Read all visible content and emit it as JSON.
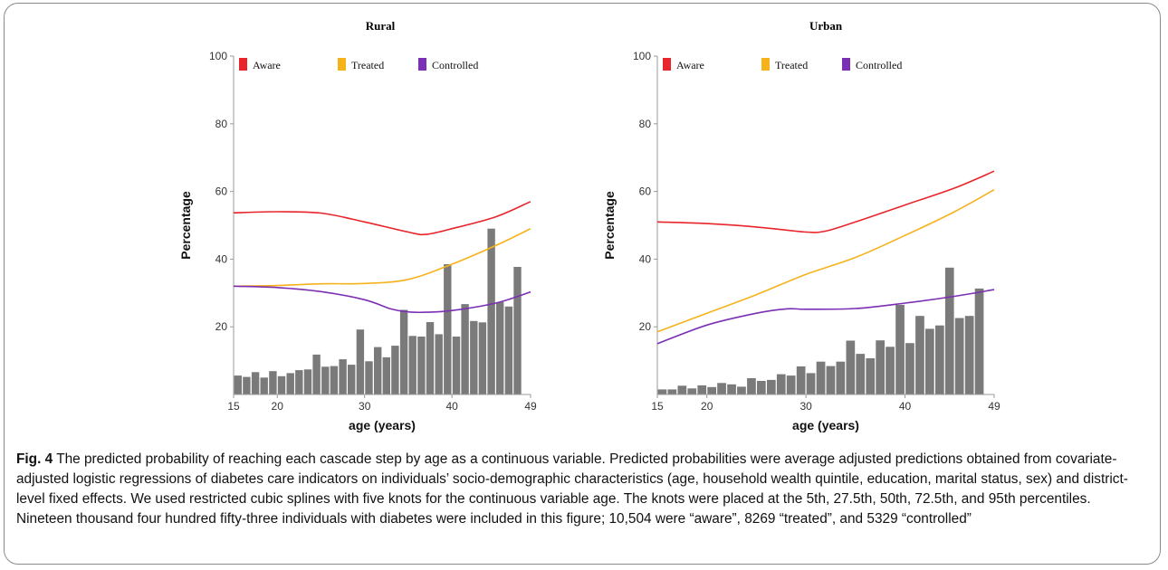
{
  "caption": {
    "label": "Fig. 4",
    "text": "The predicted probability of reaching each cascade step by age as a continuous variable. Predicted probabilities were average adjusted predictions obtained from covariate-adjusted logistic regressions of diabetes care indicators on individuals’ socio-demographic characteristics (age, household wealth quintile, education, marital status, sex) and district-level fixed effects. We used restricted cubic splines with five knots for the continuous variable age. The knots were placed at the 5th, 27.5th, 50th, 72.5th, and 95th percentiles. Nineteen thousand four hundred fifty-three individuals with diabetes were included in this figure; 10,504 were “aware”, 8269 “treated”, and 5329 “controlled”"
  },
  "colors": {
    "aware": "#e8252b",
    "treated": "#f5b21b",
    "controlled": "#7b2fb5",
    "bars": "#7a7a7a"
  },
  "chart_data": [
    {
      "type": "line",
      "title": "Rural",
      "xlabel": "age (years)",
      "ylabel": "Percentage",
      "xlim": [
        15,
        49
      ],
      "ylim": [
        0,
        100
      ],
      "xticks": [
        15,
        20,
        30,
        40,
        49
      ],
      "yticks": [
        20,
        40,
        60,
        80,
        100
      ],
      "legend": "top-left",
      "series": [
        {
          "name": "Aware",
          "x": [
            15,
            20,
            25,
            30,
            35,
            37,
            40,
            45,
            49
          ],
          "values": [
            53.7,
            54,
            53.6,
            51,
            48,
            47.3,
            49,
            52.5,
            57
          ]
        },
        {
          "name": "Treated",
          "x": [
            15,
            20,
            25,
            30,
            35,
            40,
            45,
            49
          ],
          "values": [
            32,
            32.2,
            32.7,
            32.8,
            34,
            38.5,
            44,
            49
          ]
        },
        {
          "name": "Controlled",
          "x": [
            15,
            20,
            25,
            30,
            33,
            35,
            37,
            40,
            45,
            49
          ],
          "values": [
            32,
            31.6,
            30.4,
            28,
            25.3,
            24.4,
            24.3,
            24.8,
            27,
            30.3
          ]
        }
      ],
      "histogram": {
        "x": [
          15,
          16,
          17,
          18,
          19,
          20,
          21,
          22,
          23,
          24,
          25,
          26,
          27,
          28,
          29,
          30,
          31,
          32,
          33,
          34,
          35,
          36,
          37,
          38,
          39,
          40,
          41,
          42,
          43,
          44,
          45,
          46,
          47,
          48
        ],
        "values": [
          5.6,
          5.2,
          6.6,
          5,
          6.9,
          5.4,
          6.3,
          7.2,
          7.4,
          11.8,
          8.2,
          8.4,
          10.4,
          8.8,
          19.2,
          9.8,
          14,
          11,
          14.4,
          25,
          17.3,
          17.1,
          21.4,
          17.8,
          38.5,
          17.1,
          26.7,
          21.7,
          21.3,
          49,
          27.3,
          26,
          37.7,
          0
        ]
      }
    },
    {
      "type": "line",
      "title": "Urban",
      "xlabel": "age (years)",
      "ylabel": "Percentage",
      "xlim": [
        15,
        49
      ],
      "ylim": [
        0,
        100
      ],
      "xticks": [
        15,
        20,
        30,
        40,
        49
      ],
      "yticks": [
        20,
        40,
        60,
        80,
        100
      ],
      "legend": "top-left",
      "series": [
        {
          "name": "Aware",
          "x": [
            15,
            20,
            25,
            30,
            32,
            35,
            40,
            45,
            49
          ],
          "values": [
            51,
            50.5,
            49.5,
            48,
            48.3,
            51,
            56,
            61,
            66
          ]
        },
        {
          "name": "Treated",
          "x": [
            15,
            20,
            25,
            30,
            35,
            40,
            45,
            49
          ],
          "values": [
            18.5,
            24,
            29.5,
            35.5,
            40.5,
            47,
            54,
            60.5
          ]
        },
        {
          "name": "Controlled",
          "x": [
            15,
            20,
            25,
            28,
            30,
            35,
            40,
            45,
            49
          ],
          "values": [
            15,
            20.5,
            24,
            25.3,
            25.2,
            25.4,
            27,
            29,
            31
          ]
        }
      ],
      "histogram": {
        "x": [
          15,
          16,
          17,
          18,
          19,
          20,
          21,
          22,
          23,
          24,
          25,
          26,
          27,
          28,
          29,
          30,
          31,
          32,
          33,
          34,
          35,
          36,
          37,
          38,
          39,
          40,
          41,
          42,
          43,
          44,
          45,
          46,
          47,
          48
        ],
        "values": [
          1.5,
          1.5,
          2.6,
          1.8,
          2.7,
          2.2,
          3.4,
          3,
          2.3,
          4.8,
          4,
          4.3,
          6,
          5.6,
          8.3,
          6.3,
          9.7,
          8.4,
          9.7,
          15.9,
          12,
          10.7,
          16,
          14.1,
          26.5,
          15.2,
          23.2,
          19.4,
          20.4,
          37.5,
          22.6,
          23.2,
          31.3,
          0
        ]
      }
    }
  ]
}
